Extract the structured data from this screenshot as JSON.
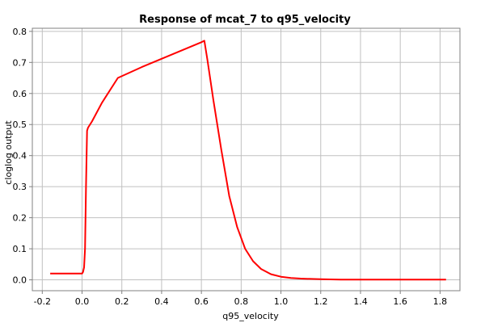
{
  "chart_data": {
    "type": "line",
    "title": "Response of mcat_7 to q95_velocity",
    "xlabel": "q95_velocity",
    "ylabel": "cloglog output",
    "xlim": [
      -0.25,
      1.9
    ],
    "ylim": [
      -0.035,
      0.81
    ],
    "xticks": [
      -0.2,
      0.0,
      0.2,
      0.4,
      0.6,
      0.8,
      1.0,
      1.2,
      1.4,
      1.6,
      1.8
    ],
    "xtick_labels": [
      "-0.2",
      "0.0",
      "0.2",
      "0.4",
      "0.6",
      "0.8",
      "1.0",
      "1.2",
      "1.4",
      "1.6",
      "1.8"
    ],
    "yticks": [
      0.0,
      0.1,
      0.2,
      0.3,
      0.4,
      0.5,
      0.6,
      0.7,
      0.8
    ],
    "ytick_labels": [
      "0.0",
      "0.1",
      "0.2",
      "0.3",
      "0.4",
      "0.5",
      "0.6",
      "0.7",
      "0.8"
    ],
    "grid": true,
    "series": [
      {
        "color": "#ff0000",
        "x": [
          -0.16,
          0.0,
          0.005,
          0.01,
          0.015,
          0.02,
          0.025,
          0.03,
          0.05,
          0.1,
          0.18,
          0.3,
          0.45,
          0.6,
          0.615,
          0.63,
          0.66,
          0.7,
          0.74,
          0.78,
          0.82,
          0.86,
          0.9,
          0.95,
          1.0,
          1.05,
          1.1,
          1.2,
          1.3,
          1.5,
          1.7,
          1.83
        ],
        "y": [
          0.02,
          0.02,
          0.025,
          0.04,
          0.1,
          0.3,
          0.48,
          0.49,
          0.51,
          0.57,
          0.65,
          0.685,
          0.725,
          0.765,
          0.77,
          0.71,
          0.58,
          0.42,
          0.27,
          0.17,
          0.1,
          0.06,
          0.035,
          0.018,
          0.01,
          0.006,
          0.004,
          0.002,
          0.001,
          0.001,
          0.001,
          0.001
        ]
      }
    ]
  }
}
